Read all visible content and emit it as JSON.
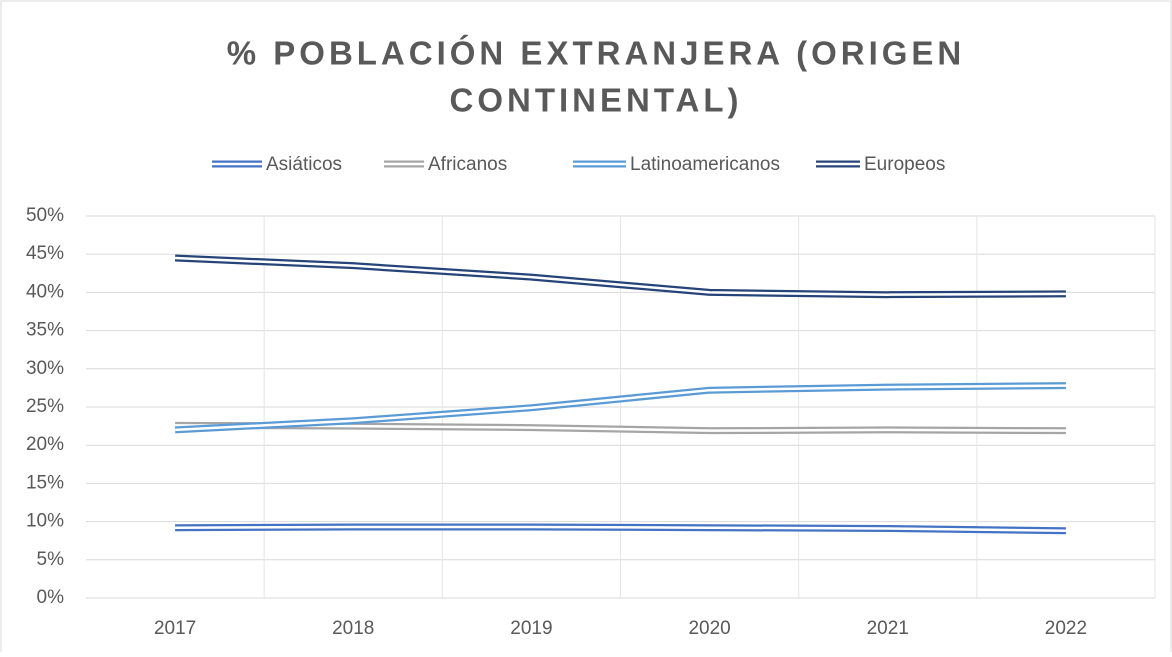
{
  "chart_data": {
    "type": "line",
    "title": [
      "% POBLACIÓN EXTRANJERA (ORIGEN",
      "CONTINENTAL)"
    ],
    "categories": [
      "2017",
      "2018",
      "2019",
      "2020",
      "2021",
      "2022"
    ],
    "series": [
      {
        "name": "Asiáticos",
        "color": "#4472c4",
        "values": [
          9.2,
          9.3,
          9.3,
          9.2,
          9.1,
          8.8
        ]
      },
      {
        "name": "Africanos",
        "color": "#a5a5a5",
        "values": [
          22.6,
          22.5,
          22.3,
          21.9,
          22.0,
          21.9
        ]
      },
      {
        "name": "Latinoamericanos",
        "color": "#5b9bd5",
        "values": [
          22.0,
          23.2,
          24.9,
          27.2,
          27.6,
          27.8
        ]
      },
      {
        "name": "Europeos",
        "color": "#264478",
        "values": [
          44.5,
          43.5,
          42.0,
          40.0,
          39.7,
          39.8
        ]
      }
    ],
    "ylim": [
      0,
      50
    ],
    "yticks": [
      {
        "value": 0,
        "label": "0%"
      },
      {
        "value": 5,
        "label": "5%"
      },
      {
        "value": 10,
        "label": "10%"
      },
      {
        "value": 15,
        "label": "15%"
      },
      {
        "value": 20,
        "label": "20%"
      },
      {
        "value": 25,
        "label": "25%"
      },
      {
        "value": 30,
        "label": "30%"
      },
      {
        "value": 35,
        "label": "35%"
      },
      {
        "value": 40,
        "label": "40%"
      },
      {
        "value": 45,
        "label": "45%"
      },
      {
        "value": 50,
        "label": "50%"
      }
    ],
    "grid": true,
    "legend": "top"
  }
}
